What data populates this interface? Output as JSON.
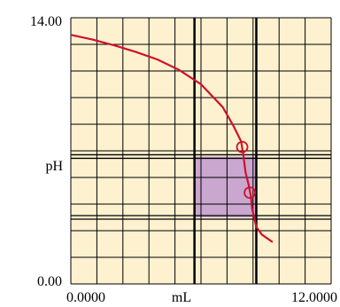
{
  "chart_data": {
    "type": "line",
    "title": "",
    "xlabel": "mL",
    "ylabel": "pH",
    "xlim": [
      0,
      12
    ],
    "ylim": [
      0,
      14
    ],
    "x_tick_labels": [
      "0.0000",
      "12.0000"
    ],
    "y_tick_labels": [
      "14.00",
      "0.00"
    ],
    "grid": true,
    "minor_grid_divisions": {
      "x": 10,
      "y": 10
    },
    "series": [
      {
        "x": [
          0,
          1,
          2,
          3,
          4,
          5,
          6,
          7,
          7.5,
          7.85,
          7.95,
          8.05,
          8.2,
          8.3,
          8.35,
          8.45,
          8.55,
          8.8,
          9.3
        ],
        "y": [
          13.1,
          12.85,
          12.55,
          12.2,
          11.8,
          11.25,
          10.5,
          9.3,
          8.3,
          7.5,
          6.8,
          5.9,
          5.2,
          4.6,
          4.0,
          3.5,
          3.0,
          2.6,
          2.2
        ]
      }
    ],
    "markers": [
      {
        "x": 7.9,
        "y": 7.2
      },
      {
        "x": 8.25,
        "y": 4.8
      }
    ],
    "highlight_region": {
      "x": [
        5.7,
        8.55
      ],
      "y": [
        3.5,
        6.7
      ]
    },
    "reference_lines": {
      "x": [
        5.7,
        8.55
      ],
      "y": [
        6.7,
        3.5
      ]
    },
    "colors": {
      "background": "#fdf1cf",
      "grid": "#000000",
      "curve": "#d0102b",
      "highlight": "#c9a7cf"
    }
  }
}
